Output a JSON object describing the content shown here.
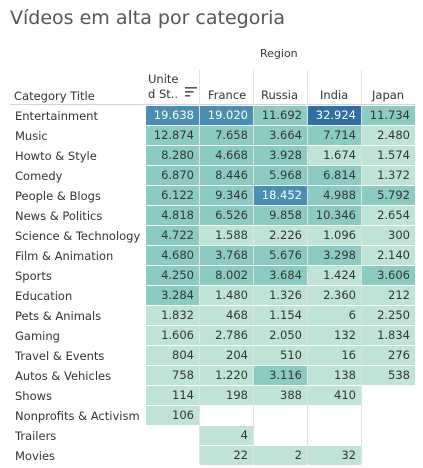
{
  "title": "Vídeos em alta por categoria",
  "region_label": "Region",
  "columns": {
    "category_header": "Category Title",
    "us_line1": "Unite",
    "us_line2": "d St..",
    "france": "France",
    "russia": "Russia",
    "india": "India",
    "japan": "Japan"
  },
  "icons": {
    "sort": "sort-descending-icon"
  },
  "colors": {
    "low": "#bfe3d6",
    "mid": "#8ccbc4",
    "high": "#4a8eb5",
    "highest": "#2f6fa5"
  },
  "rows": [
    {
      "category": "Entertainment",
      "values": [
        "19.638",
        "19.020",
        "11.692",
        "32.924",
        "11.734"
      ],
      "raw": [
        19638,
        19020,
        11692,
        32924,
        11734
      ]
    },
    {
      "category": "Music",
      "values": [
        "12.874",
        "7.658",
        "3.664",
        "7.714",
        "2.480"
      ],
      "raw": [
        12874,
        7658,
        3664,
        7714,
        2480
      ]
    },
    {
      "category": "Howto & Style",
      "values": [
        "8.280",
        "4.668",
        "3.928",
        "1.674",
        "1.574"
      ],
      "raw": [
        8280,
        4668,
        3928,
        1674,
        1574
      ]
    },
    {
      "category": "Comedy",
      "values": [
        "6.870",
        "8.446",
        "5.968",
        "6.814",
        "1.372"
      ],
      "raw": [
        6870,
        8446,
        5968,
        6814,
        1372
      ]
    },
    {
      "category": "People & Blogs",
      "values": [
        "6.122",
        "9.346",
        "18.452",
        "4.988",
        "5.792"
      ],
      "raw": [
        6122,
        9346,
        18452,
        4988,
        5792
      ]
    },
    {
      "category": "News & Politics",
      "values": [
        "4.818",
        "6.526",
        "9.858",
        "10.346",
        "2.654"
      ],
      "raw": [
        4818,
        6526,
        9858,
        10346,
        2654
      ]
    },
    {
      "category": "Science & Technology",
      "values": [
        "4.722",
        "1.588",
        "2.226",
        "1.096",
        "300"
      ],
      "raw": [
        4722,
        1588,
        2226,
        1096,
        300
      ]
    },
    {
      "category": "Film & Animation",
      "values": [
        "4.680",
        "3.768",
        "5.676",
        "3.298",
        "2.140"
      ],
      "raw": [
        4680,
        3768,
        5676,
        3298,
        2140
      ]
    },
    {
      "category": "Sports",
      "values": [
        "4.250",
        "8.002",
        "3.684",
        "1.424",
        "3.606"
      ],
      "raw": [
        4250,
        8002,
        3684,
        1424,
        3606
      ]
    },
    {
      "category": "Education",
      "values": [
        "3.284",
        "1.480",
        "1.326",
        "2.360",
        "212"
      ],
      "raw": [
        3284,
        1480,
        1326,
        2360,
        212
      ]
    },
    {
      "category": "Pets & Animals",
      "values": [
        "1.832",
        "468",
        "1.154",
        "6",
        "2.250"
      ],
      "raw": [
        1832,
        468,
        1154,
        6,
        2250
      ]
    },
    {
      "category": "Gaming",
      "values": [
        "1.606",
        "2.786",
        "2.050",
        "132",
        "1.834"
      ],
      "raw": [
        1606,
        2786,
        2050,
        132,
        1834
      ]
    },
    {
      "category": "Travel & Events",
      "values": [
        "804",
        "204",
        "510",
        "16",
        "276"
      ],
      "raw": [
        804,
        204,
        510,
        16,
        276
      ]
    },
    {
      "category": "Autos & Vehicles",
      "values": [
        "758",
        "1.220",
        "3.116",
        "138",
        "538"
      ],
      "raw": [
        758,
        1220,
        3116,
        138,
        538
      ]
    },
    {
      "category": "Shows",
      "values": [
        "114",
        "198",
        "388",
        "410",
        ""
      ],
      "raw": [
        114,
        198,
        388,
        410,
        null
      ]
    },
    {
      "category": "Nonprofits & Activism",
      "values": [
        "106",
        "",
        "",
        "",
        ""
      ],
      "raw": [
        106,
        null,
        null,
        null,
        null
      ]
    },
    {
      "category": "Trailers",
      "values": [
        "",
        "4",
        "",
        "",
        ""
      ],
      "raw": [
        null,
        4,
        null,
        null,
        null
      ]
    },
    {
      "category": "Movies",
      "values": [
        "",
        "22",
        "2",
        "32",
        ""
      ],
      "raw": [
        null,
        22,
        2,
        32,
        null
      ]
    }
  ]
}
